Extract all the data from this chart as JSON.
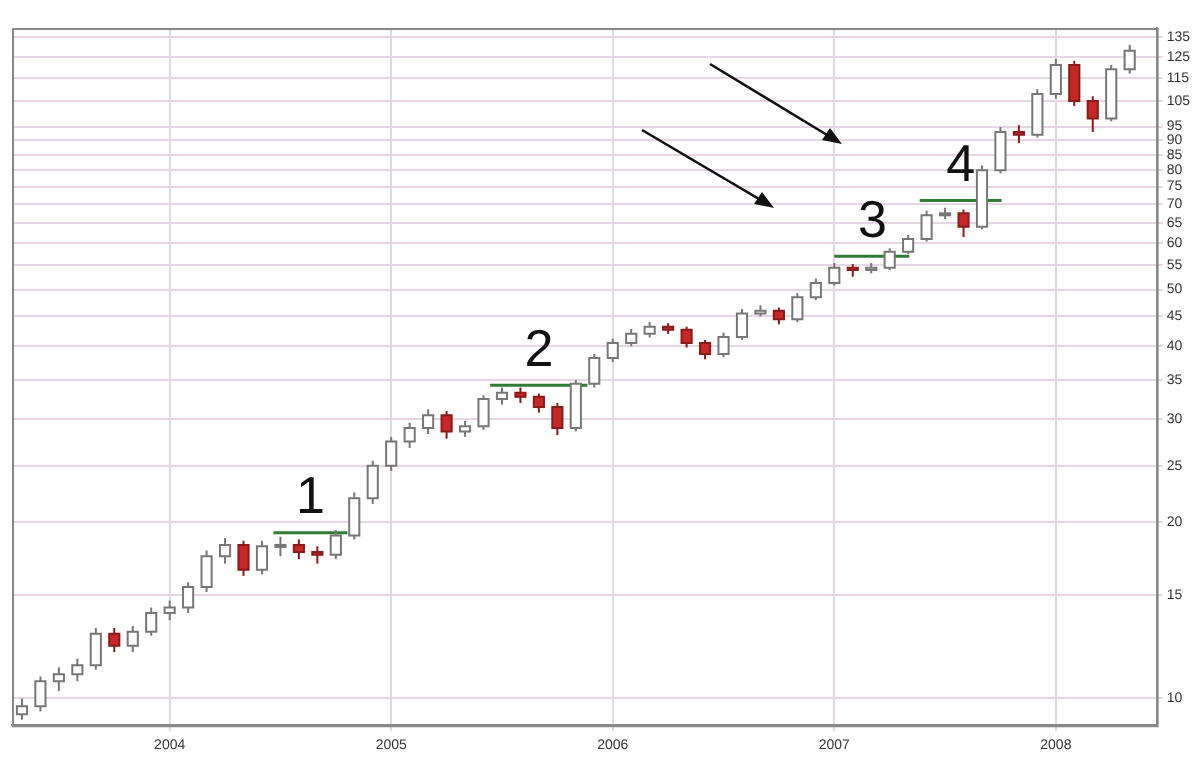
{
  "chart_data": {
    "type": "candlestick",
    "x": [
      "2003-05",
      "2003-06",
      "2003-07",
      "2003-08",
      "2003-09",
      "2003-10",
      "2003-11",
      "2003-12",
      "2004-01",
      "2004-02",
      "2004-03",
      "2004-04",
      "2004-05",
      "2004-06",
      "2004-07",
      "2004-08",
      "2004-09",
      "2004-10",
      "2004-11",
      "2004-12",
      "2005-01",
      "2005-02",
      "2005-03",
      "2005-04",
      "2005-05",
      "2005-06",
      "2005-07",
      "2005-08",
      "2005-09",
      "2005-10",
      "2005-11",
      "2005-12",
      "2006-01",
      "2006-02",
      "2006-03",
      "2006-04",
      "2006-05",
      "2006-06",
      "2006-07",
      "2006-08",
      "2006-09",
      "2006-10",
      "2006-11",
      "2006-12",
      "2007-01",
      "2007-02",
      "2007-03",
      "2007-04",
      "2007-05",
      "2007-06",
      "2007-07",
      "2007-08",
      "2007-09",
      "2007-10",
      "2007-11",
      "2007-12",
      "2008-01",
      "2008-02",
      "2008-03",
      "2008-04",
      "2008-05"
    ],
    "ohlc": [
      [
        9.4,
        10.0,
        9.2,
        9.7
      ],
      [
        9.7,
        10.9,
        9.5,
        10.7
      ],
      [
        10.7,
        11.3,
        10.3,
        11.0
      ],
      [
        11.0,
        11.7,
        10.7,
        11.4
      ],
      [
        11.4,
        13.2,
        11.2,
        12.9
      ],
      [
        12.9,
        13.2,
        12.0,
        12.3
      ],
      [
        12.3,
        13.3,
        12.0,
        13.0
      ],
      [
        13.0,
        14.3,
        12.8,
        14.0
      ],
      [
        14.0,
        14.7,
        13.6,
        14.3
      ],
      [
        14.3,
        15.8,
        14.0,
        15.5
      ],
      [
        15.5,
        17.9,
        15.2,
        17.5
      ],
      [
        17.5,
        18.8,
        17.0,
        18.3
      ],
      [
        18.3,
        18.6,
        16.2,
        16.6
      ],
      [
        16.6,
        18.6,
        16.3,
        18.2
      ],
      [
        18.2,
        18.9,
        17.5,
        18.3
      ],
      [
        18.3,
        18.7,
        17.3,
        17.8
      ],
      [
        17.8,
        18.2,
        17.0,
        17.6
      ],
      [
        17.6,
        19.4,
        17.3,
        19.0
      ],
      [
        19.0,
        22.5,
        18.7,
        22.0
      ],
      [
        22.0,
        25.5,
        21.5,
        25.0
      ],
      [
        25.0,
        28.0,
        24.5,
        27.5
      ],
      [
        27.5,
        29.6,
        26.8,
        29.0
      ],
      [
        29.0,
        31.2,
        28.3,
        30.5
      ],
      [
        30.5,
        31.0,
        27.8,
        28.6
      ],
      [
        28.6,
        29.8,
        28.0,
        29.2
      ],
      [
        29.2,
        33.0,
        28.8,
        32.5
      ],
      [
        32.5,
        34.0,
        31.8,
        33.3
      ],
      [
        33.3,
        34.0,
        32.0,
        32.8
      ],
      [
        32.8,
        33.2,
        30.8,
        31.5
      ],
      [
        31.5,
        32.0,
        28.2,
        29.0
      ],
      [
        29.0,
        35.0,
        28.6,
        34.5
      ],
      [
        34.5,
        38.8,
        34.0,
        38.2
      ],
      [
        38.2,
        41.2,
        37.6,
        40.5
      ],
      [
        40.5,
        42.8,
        40.0,
        42.0
      ],
      [
        42.0,
        44.0,
        41.4,
        43.2
      ],
      [
        43.2,
        43.8,
        42.0,
        42.7
      ],
      [
        42.7,
        43.2,
        39.8,
        40.5
      ],
      [
        40.5,
        41.0,
        38.0,
        38.8
      ],
      [
        38.8,
        42.2,
        38.3,
        41.5
      ],
      [
        41.5,
        46.3,
        41.0,
        45.5
      ],
      [
        45.5,
        47.0,
        45.0,
        46.0
      ],
      [
        46.0,
        46.6,
        43.6,
        44.5
      ],
      [
        44.5,
        49.3,
        44.0,
        48.5
      ],
      [
        48.5,
        52.2,
        48.0,
        51.3
      ],
      [
        51.3,
        55.5,
        50.8,
        54.5
      ],
      [
        54.5,
        55.3,
        52.6,
        54.0
      ],
      [
        54.0,
        55.5,
        53.3,
        54.5
      ],
      [
        54.5,
        58.8,
        54.0,
        58.0
      ],
      [
        58.0,
        62.0,
        57.5,
        61.0
      ],
      [
        61.0,
        68.2,
        60.4,
        67.0
      ],
      [
        67.0,
        69.0,
        66.0,
        67.5
      ],
      [
        67.5,
        68.5,
        61.5,
        64.0
      ],
      [
        64.0,
        81.5,
        63.4,
        80.0
      ],
      [
        80.0,
        94.8,
        79.0,
        93.0
      ],
      [
        93.0,
        95.5,
        89.0,
        92.0
      ],
      [
        92.0,
        110,
        91.0,
        108
      ],
      [
        108,
        124,
        106,
        121
      ],
      [
        121,
        123,
        103,
        105
      ],
      [
        105,
        107,
        93,
        98
      ],
      [
        98,
        121,
        97,
        119
      ],
      [
        119,
        131,
        117,
        128
      ]
    ],
    "series": [
      {
        "type": "line",
        "color": "#2e7d32",
        "x": [
          "2004-06-20",
          "2004-10-20"
        ],
        "values": [
          19.2,
          19.2
        ]
      },
      {
        "type": "line",
        "color": "#2e7d32",
        "x": [
          "2005-06-12",
          "2005-11-20"
        ],
        "values": [
          34.3,
          34.3
        ]
      },
      {
        "type": "line",
        "color": "#2e7d32",
        "x": [
          "2007-01-01",
          "2007-05-03"
        ],
        "values": [
          57,
          57
        ]
      },
      {
        "type": "line",
        "color": "#2e7d32",
        "x": [
          "2007-05-20",
          "2007-10-03"
        ],
        "values": [
          71,
          71
        ]
      }
    ],
    "annotations": [
      {
        "text": "1",
        "x": "2004-08-20",
        "y": 19.2
      },
      {
        "text": "2",
        "x": "2005-09-01",
        "y": 34.3
      },
      {
        "text": "3",
        "x": "2007-03-03",
        "y": 57
      },
      {
        "text": "4",
        "x": "2007-07-27",
        "y": 71
      }
    ],
    "log": "y",
    "grid": true,
    "xlim": [
      "2003-04-15",
      "2008-06-15"
    ],
    "xticks": [
      "2004",
      "2005",
      "2006",
      "2007",
      "2008"
    ],
    "ylim": [
      9,
      140
    ],
    "yticks": [
      10,
      15,
      20,
      25,
      30,
      35,
      40,
      45,
      50,
      55,
      60,
      65,
      70,
      75,
      80,
      85,
      90,
      95,
      105,
      115,
      125,
      135
    ]
  }
}
